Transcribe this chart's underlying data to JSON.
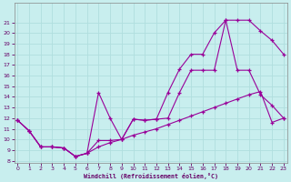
{
  "xlabel": "Windchill (Refroidissement éolien,°C)",
  "bg_color": "#c8eeee",
  "line_color": "#990099",
  "grid_color": "#b0dede",
  "xlim": [
    0,
    23
  ],
  "ylim": [
    8,
    22
  ],
  "yticks": [
    8,
    9,
    10,
    11,
    12,
    13,
    14,
    15,
    16,
    17,
    18,
    19,
    20,
    21
  ],
  "xticks": [
    0,
    1,
    2,
    3,
    4,
    5,
    6,
    7,
    8,
    9,
    10,
    11,
    12,
    13,
    14,
    15,
    16,
    17,
    18,
    19,
    20,
    21,
    22,
    23
  ],
  "curve1_x": [
    0,
    1,
    2,
    3,
    4,
    5,
    6,
    7,
    8,
    9,
    10,
    11,
    12,
    13,
    14,
    15,
    16,
    17,
    18,
    19,
    20,
    21,
    22,
    23
  ],
  "curve1_y": [
    11.8,
    10.8,
    9.3,
    9.3,
    9.2,
    8.4,
    8.7,
    9.9,
    9.9,
    10.0,
    11.9,
    11.8,
    11.9,
    14.4,
    16.6,
    18.0,
    18.0,
    20.0,
    21.2,
    21.2,
    21.2,
    20.2,
    19.3,
    18.0
  ],
  "curve2_x": [
    0,
    1,
    2,
    3,
    4,
    5,
    6,
    7,
    8,
    9,
    10,
    11,
    12,
    13,
    14,
    15,
    16,
    17,
    18,
    19,
    20,
    21,
    22,
    23
  ],
  "curve2_y": [
    11.8,
    10.8,
    9.3,
    9.3,
    9.2,
    8.4,
    8.7,
    14.4,
    12.0,
    10.0,
    11.9,
    11.8,
    11.9,
    12.0,
    14.4,
    16.5,
    16.5,
    16.5,
    21.2,
    16.5,
    16.5,
    14.2,
    13.2,
    12.0
  ],
  "curve3_x": [
    0,
    1,
    2,
    3,
    4,
    5,
    6,
    7,
    8,
    9,
    10,
    11,
    12,
    13,
    14,
    15,
    16,
    17,
    18,
    19,
    20,
    21,
    22,
    23
  ],
  "curve3_y": [
    11.8,
    10.8,
    9.3,
    9.3,
    9.2,
    8.4,
    8.7,
    9.3,
    9.7,
    10.0,
    10.4,
    10.7,
    11.0,
    11.4,
    11.8,
    12.2,
    12.6,
    13.0,
    13.4,
    13.8,
    14.2,
    14.5,
    11.6,
    12.0
  ]
}
